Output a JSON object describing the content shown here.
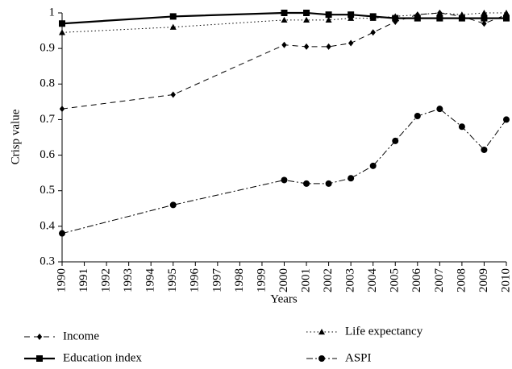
{
  "chart_data": {
    "type": "line",
    "x": [
      1990,
      1995,
      2000,
      2001,
      2002,
      2003,
      2004,
      2005,
      2006,
      2007,
      2008,
      2009,
      2010
    ],
    "xlabel": "Years",
    "ylabel": "Crisp value",
    "xlim": [
      1990,
      2010
    ],
    "xticks": [
      1990,
      1991,
      1992,
      1993,
      1994,
      1995,
      1996,
      1997,
      1998,
      1999,
      2000,
      2001,
      2002,
      2003,
      2004,
      2005,
      2006,
      2007,
      2008,
      2009,
      2010
    ],
    "ylim": [
      0.3,
      1
    ],
    "yticks": [
      0.3,
      0.4,
      0.5,
      0.6,
      0.7,
      0.8,
      0.9,
      1
    ],
    "series": [
      {
        "name": "Income",
        "color": "#000000",
        "dash": "7,5",
        "marker": "diamond",
        "width": 1,
        "values": [
          0.73,
          0.77,
          0.91,
          0.905,
          0.905,
          0.915,
          0.945,
          0.975,
          0.995,
          1.0,
          0.99,
          0.97,
          0.995
        ]
      },
      {
        "name": "Life expectancy",
        "color": "#000000",
        "dash": "1.5,3",
        "marker": "triangle",
        "width": 1,
        "values": [
          0.945,
          0.96,
          0.98,
          0.98,
          0.98,
          0.985,
          0.985,
          0.99,
          0.995,
          1.0,
          0.995,
          1.0,
          1.0
        ]
      },
      {
        "name": "Education index",
        "color": "#000000",
        "dash": "none",
        "marker": "square",
        "width": 2.2,
        "values": [
          0.97,
          0.99,
          1.0,
          1.0,
          0.995,
          0.995,
          0.99,
          0.985,
          0.985,
          0.985,
          0.985,
          0.985,
          0.985
        ]
      },
      {
        "name": "ASPI",
        "color": "#000000",
        "dash": "8,3,2,3",
        "marker": "circle",
        "width": 1,
        "values": [
          0.38,
          0.46,
          0.53,
          0.52,
          0.52,
          0.535,
          0.57,
          0.64,
          0.71,
          0.73,
          0.68,
          0.615,
          0.7
        ]
      }
    ]
  }
}
